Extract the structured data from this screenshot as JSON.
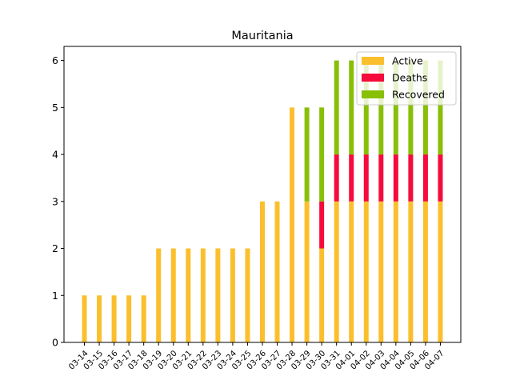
{
  "chart_data": {
    "type": "bar",
    "stacked": true,
    "title": "Mauritania",
    "xlabel": "",
    "ylabel": "",
    "ylim": [
      0,
      6.3
    ],
    "yticks": [
      0,
      1,
      2,
      3,
      4,
      5,
      6
    ],
    "grid": false,
    "legend_position": "top-right",
    "categories": [
      "03-14",
      "03-15",
      "03-16",
      "03-17",
      "03-18",
      "03-19",
      "03-20",
      "03-21",
      "03-22",
      "03-23",
      "03-24",
      "03-25",
      "03-26",
      "03-27",
      "03-28",
      "03-29",
      "03-30",
      "03-31",
      "04-01",
      "04-02",
      "04-03",
      "04-04",
      "04-05",
      "04-06",
      "04-07"
    ],
    "series": [
      {
        "name": "Active",
        "color": "#fbbf2d",
        "values": [
          1,
          1,
          1,
          1,
          1,
          2,
          2,
          2,
          2,
          2,
          2,
          2,
          3,
          3,
          5,
          3,
          2,
          3,
          3,
          3,
          3,
          3,
          3,
          3,
          3
        ]
      },
      {
        "name": "Deaths",
        "color": "#f50b3c",
        "values": [
          0,
          0,
          0,
          0,
          0,
          0,
          0,
          0,
          0,
          0,
          0,
          0,
          0,
          0,
          0,
          0,
          1,
          1,
          1,
          1,
          1,
          1,
          1,
          1,
          1
        ]
      },
      {
        "name": "Recovered",
        "color": "#88bf07",
        "values": [
          0,
          0,
          0,
          0,
          0,
          0,
          0,
          0,
          0,
          0,
          0,
          0,
          0,
          0,
          0,
          2,
          2,
          2,
          2,
          2,
          2,
          2,
          2,
          2,
          2
        ]
      }
    ]
  }
}
